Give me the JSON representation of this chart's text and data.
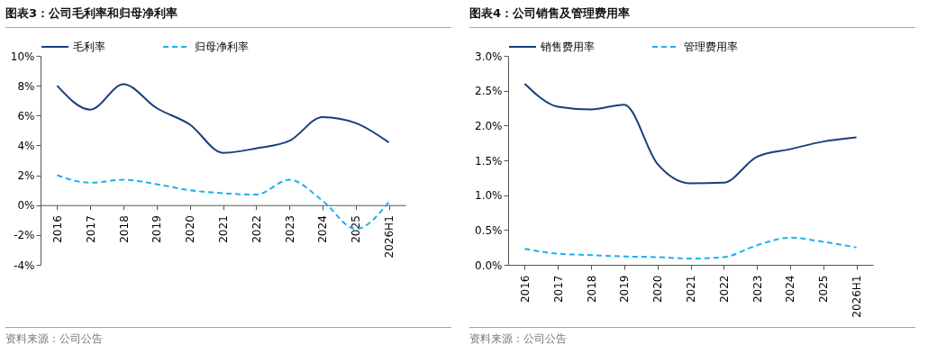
{
  "chart_data": [
    {
      "type": "line",
      "title": "图表3：公司毛利率和归母净利率",
      "annotations": [
        "资料来源：公司公告"
      ],
      "categories": [
        "2016",
        "2017",
        "2018",
        "2019",
        "2020",
        "2021",
        "2022",
        "2023",
        "2024",
        "2025",
        "2026H1"
      ],
      "ylim": [
        -4,
        10
      ],
      "yticks": [
        {
          "value": -4,
          "label": "-4%"
        },
        {
          "value": -2,
          "label": "-2%"
        },
        {
          "value": 0,
          "label": "0%"
        },
        {
          "value": 2,
          "label": "2%"
        },
        {
          "value": 4,
          "label": "4%"
        },
        {
          "value": 6,
          "label": "6%"
        },
        {
          "value": 8,
          "label": "8%"
        },
        {
          "value": 10,
          "label": "10%"
        }
      ],
      "legend": "top",
      "series": [
        {
          "name": "毛利率",
          "color": "#173f7c",
          "line_style": "solid",
          "values": [
            8.0,
            6.4,
            8.1,
            6.5,
            5.4,
            3.5,
            3.8,
            4.3,
            5.9,
            5.5,
            4.2
          ]
        },
        {
          "name": "归母净利率",
          "color": "#1bb2ea",
          "line_style": "dashed",
          "values": [
            2.0,
            1.5,
            1.7,
            1.4,
            1.0,
            0.8,
            0.7,
            1.7,
            0.3,
            -1.6,
            0.2
          ]
        }
      ]
    },
    {
      "type": "line",
      "title": "图表4：公司销售及管理费用率",
      "annotations": [
        "资料来源：公司公告"
      ],
      "categories": [
        "2016",
        "2017",
        "2018",
        "2019",
        "2020",
        "2021",
        "2022",
        "2023",
        "2024",
        "2025",
        "2026H1"
      ],
      "ylim": [
        0,
        3
      ],
      "yticks": [
        {
          "value": 0,
          "label": "0.0%"
        },
        {
          "value": 0.5,
          "label": "0.5%"
        },
        {
          "value": 1,
          "label": "1.0%"
        },
        {
          "value": 1.5,
          "label": "1.5%"
        },
        {
          "value": 2,
          "label": "2.0%"
        },
        {
          "value": 2.5,
          "label": "2.5%"
        },
        {
          "value": 3,
          "label": "3.0%"
        }
      ],
      "legend": "top",
      "series": [
        {
          "name": "销售费用率",
          "color": "#173f7c",
          "line_style": "solid",
          "values": [
            2.6,
            2.27,
            2.23,
            2.3,
            1.45,
            1.17,
            1.18,
            1.55,
            1.66,
            1.77,
            1.83
          ]
        },
        {
          "name": "管理费用率",
          "color": "#1bb2ea",
          "line_style": "dashed",
          "values": [
            0.23,
            0.16,
            0.14,
            0.12,
            0.11,
            0.09,
            0.11,
            0.28,
            0.39,
            0.33,
            0.25
          ]
        }
      ]
    }
  ]
}
